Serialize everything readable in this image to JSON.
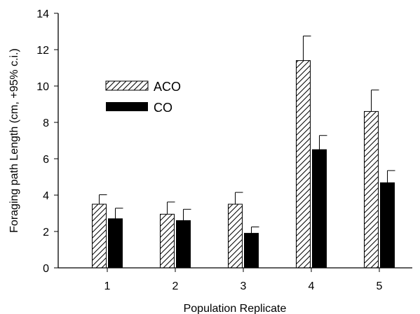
{
  "chart_data": {
    "type": "bar",
    "title": "",
    "xlabel": "Population Replicate",
    "ylabel": "Foraging path Length (cm, +95% c.i.)",
    "categories": [
      "1",
      "2",
      "3",
      "4",
      "5"
    ],
    "ylim": [
      0,
      14
    ],
    "yticks": [
      0,
      2,
      4,
      6,
      8,
      10,
      12,
      14
    ],
    "grid": false,
    "legend_position": "upper-left",
    "series": [
      {
        "name": "ACO",
        "pattern": "diagonal-hatch",
        "color": "#000000",
        "values": [
          3.5,
          2.95,
          3.5,
          11.4,
          8.6
        ],
        "ci_upper": [
          4.02,
          3.62,
          4.15,
          12.75,
          9.78
        ]
      },
      {
        "name": "CO",
        "pattern": "solid",
        "color": "#000000",
        "values": [
          2.7,
          2.6,
          1.9,
          6.5,
          4.68
        ],
        "ci_upper": [
          3.28,
          3.22,
          2.25,
          7.28,
          5.35
        ]
      }
    ]
  }
}
